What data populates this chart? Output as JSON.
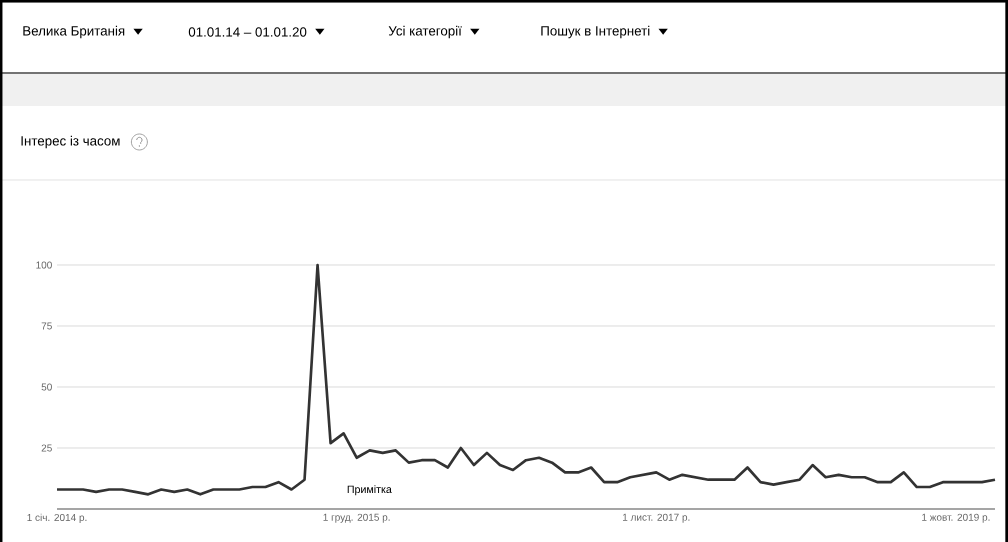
{
  "chart_data": {
    "type": "line",
    "title": "Інтерес із часом",
    "annotations": [
      "Велика Британія",
      "01.01.14 – 01.01.20",
      "Усі категорії",
      "Пошук в Інтернеті",
      "Примітка"
    ],
    "x": [
      "2014-01",
      "2014-02",
      "2014-03",
      "2014-04",
      "2014-05",
      "2014-06",
      "2014-07",
      "2014-08",
      "2014-09",
      "2014-10",
      "2014-11",
      "2014-12",
      "2015-01",
      "2015-02",
      "2015-03",
      "2015-04",
      "2015-05",
      "2015-06",
      "2015-07",
      "2015-08",
      "2015-09",
      "2015-10",
      "2015-11",
      "2015-12",
      "2016-01",
      "2016-02",
      "2016-03",
      "2016-04",
      "2016-05",
      "2016-06",
      "2016-07",
      "2016-08",
      "2016-09",
      "2016-10",
      "2016-11",
      "2016-12",
      "2017-01",
      "2017-02",
      "2017-03",
      "2017-04",
      "2017-05",
      "2017-06",
      "2017-07",
      "2017-08",
      "2017-09",
      "2017-10",
      "2017-11",
      "2017-12",
      "2018-01",
      "2018-02",
      "2018-03",
      "2018-04",
      "2018-05",
      "2018-06",
      "2018-07",
      "2018-08",
      "2018-09",
      "2018-10",
      "2018-11",
      "2018-12",
      "2019-01",
      "2019-02",
      "2019-03",
      "2019-04",
      "2019-05",
      "2019-06",
      "2019-07",
      "2019-08",
      "2019-09",
      "2019-10",
      "2019-11",
      "2019-12",
      "2020-01"
    ],
    "values": [
      8,
      8,
      8,
      7,
      8,
      8,
      7,
      6,
      8,
      7,
      8,
      6,
      8,
      8,
      8,
      9,
      9,
      11,
      8,
      12,
      100,
      27,
      31,
      21,
      24,
      23,
      24,
      19,
      20,
      20,
      17,
      25,
      18,
      23,
      18,
      16,
      20,
      21,
      19,
      15,
      15,
      17,
      11,
      11,
      13,
      14,
      15,
      12,
      14,
      13,
      12,
      12,
      12,
      17,
      11,
      10,
      11,
      12,
      18,
      13,
      14,
      13,
      13,
      11,
      11,
      15,
      9,
      9,
      11,
      11,
      11,
      11,
      12
    ],
    "color": "#333333",
    "xlim": [
      "2014-01",
      "2020-01"
    ],
    "xticks": [
      {
        "value": "2014-01-01",
        "label": "1 січ. 2014 р."
      },
      {
        "value": "2015-12-01",
        "label": "1 груд. 2015 р."
      },
      {
        "value": "2017-11-01",
        "label": "1 лист. 2017 р."
      },
      {
        "value": "2019-10-01",
        "label": "1 жовт. 2019 р."
      }
    ],
    "ylim": [
      0,
      100
    ],
    "yticks": [
      25,
      50,
      75,
      100
    ],
    "grid": "y"
  }
}
